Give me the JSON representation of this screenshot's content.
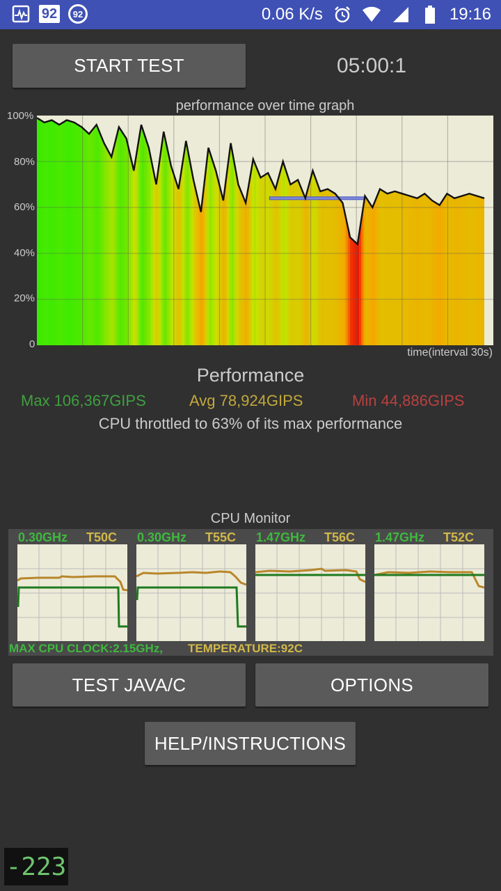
{
  "status_bar": {
    "left_icons": [
      "activity-icon",
      "badge-92-icon",
      "circle-92-icon"
    ],
    "badge_text": "92",
    "circle_text": "92",
    "speed": "0.06 K/s",
    "time": "19:16",
    "right_icons": [
      "alarm-icon",
      "wifi-icon",
      "signal-icon",
      "battery-icon"
    ]
  },
  "controls": {
    "start_label": "START TEST",
    "timer": "05:00:1",
    "test_label": "TEST JAVA/C",
    "options_label": "OPTIONS",
    "help_label": "HELP/INSTRUCTIONS"
  },
  "graph": {
    "title": "performance over time graph",
    "y_ticks": [
      "100%",
      "80%",
      "60%",
      "40%",
      "20%",
      "0"
    ],
    "x_label": "time(interval 30s)"
  },
  "performance": {
    "title": "Performance",
    "max": "Max 106,367GIPS",
    "avg": "Avg 78,924GIPS",
    "min": "Min 44,886GIPS",
    "throttle": "CPU throttled to 63% of its max performance",
    "colors": {
      "max": "#3fa03f",
      "avg": "#c2a83c",
      "min": "#b84040"
    }
  },
  "cpu_monitor": {
    "title": "CPU Monitor",
    "cores": [
      {
        "freq": "0.30GHz",
        "temp": "T50C"
      },
      {
        "freq": "0.30GHz",
        "temp": "T55C"
      },
      {
        "freq": "1.47GHz",
        "temp": "T56C"
      },
      {
        "freq": "1.47GHz",
        "temp": "T52C"
      }
    ],
    "max_clock": "MAX CPU CLOCK:2.15GHz,",
    "temperature": "TEMPERATURE:92C"
  },
  "counter": "-223",
  "chart_data": {
    "type": "area",
    "title": "performance over time graph",
    "xlabel": "time(interval 30s)",
    "ylabel": "",
    "ylim": [
      0,
      100
    ],
    "y_unit": "%",
    "x_tick_interval_s": 30,
    "grid": true,
    "series": [
      {
        "x": [
          0,
          5,
          10,
          15,
          20,
          25,
          30,
          35,
          40,
          45,
          50,
          55,
          60,
          65,
          70,
          75,
          80,
          85,
          90,
          95,
          100,
          105,
          110,
          115,
          120,
          125,
          130,
          135,
          140,
          145,
          150,
          155,
          160,
          165,
          170,
          175,
          180,
          185,
          190,
          195,
          200,
          205,
          210,
          215,
          220,
          225,
          230,
          235,
          240,
          245,
          250,
          255,
          260,
          265,
          270,
          275,
          280,
          285,
          290,
          295,
          300
        ],
        "values": [
          99,
          97,
          98,
          96,
          98,
          97,
          95,
          92,
          96,
          88,
          82,
          95,
          90,
          76,
          96,
          86,
          70,
          93,
          78,
          68,
          89,
          72,
          58,
          86,
          76,
          63,
          88,
          70,
          62,
          81,
          73,
          75,
          68,
          80,
          70,
          72,
          64,
          76,
          67,
          68,
          66,
          62,
          47,
          44,
          65,
          60,
          68,
          66,
          67,
          66,
          65,
          64,
          66,
          63,
          61,
          66,
          64,
          65,
          66,
          65,
          64
        ]
      }
    ],
    "avg_line": {
      "value": 64,
      "x_start": 156,
      "x_end": 220
    },
    "min_marker": 44
  }
}
